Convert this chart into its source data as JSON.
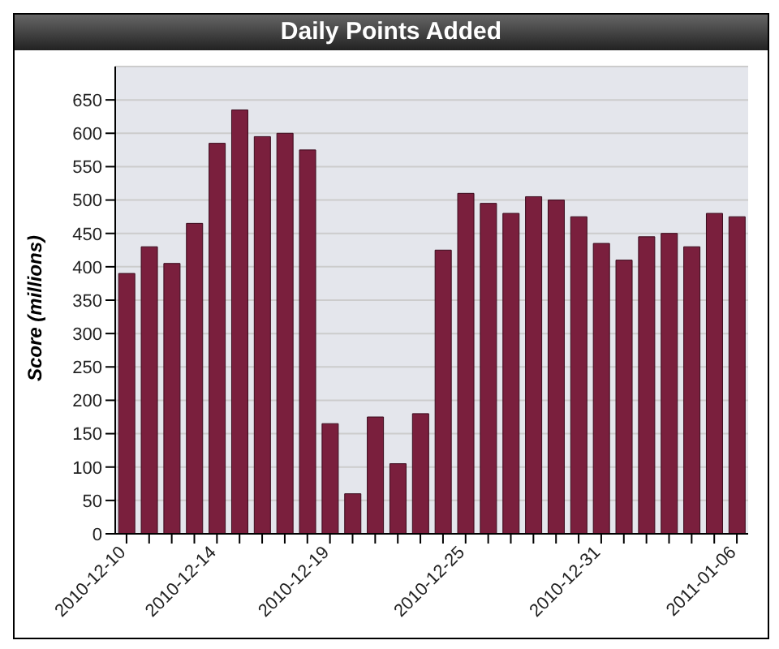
{
  "chart_data": {
    "type": "bar",
    "title": "Daily Points Added",
    "ylabel": "Score (millions)",
    "categories": [
      "2010-12-10",
      null,
      null,
      null,
      "2010-12-14",
      null,
      null,
      null,
      null,
      "2010-12-19",
      null,
      null,
      null,
      null,
      null,
      "2010-12-25",
      null,
      null,
      null,
      null,
      null,
      "2010-12-31",
      null,
      null,
      null,
      null,
      null,
      "2011-01-06"
    ],
    "values": [
      390,
      430,
      405,
      465,
      585,
      635,
      595,
      600,
      575,
      165,
      60,
      175,
      105,
      180,
      425,
      510,
      495,
      480,
      505,
      500,
      475,
      435,
      410,
      445,
      450,
      430,
      480,
      475
    ],
    "color": "#7a1f3d",
    "ylim": [
      0,
      700
    ],
    "yticks": [
      0,
      50,
      100,
      150,
      200,
      250,
      300,
      350,
      400,
      450,
      500,
      550,
      600,
      650
    ],
    "grid": "y"
  }
}
